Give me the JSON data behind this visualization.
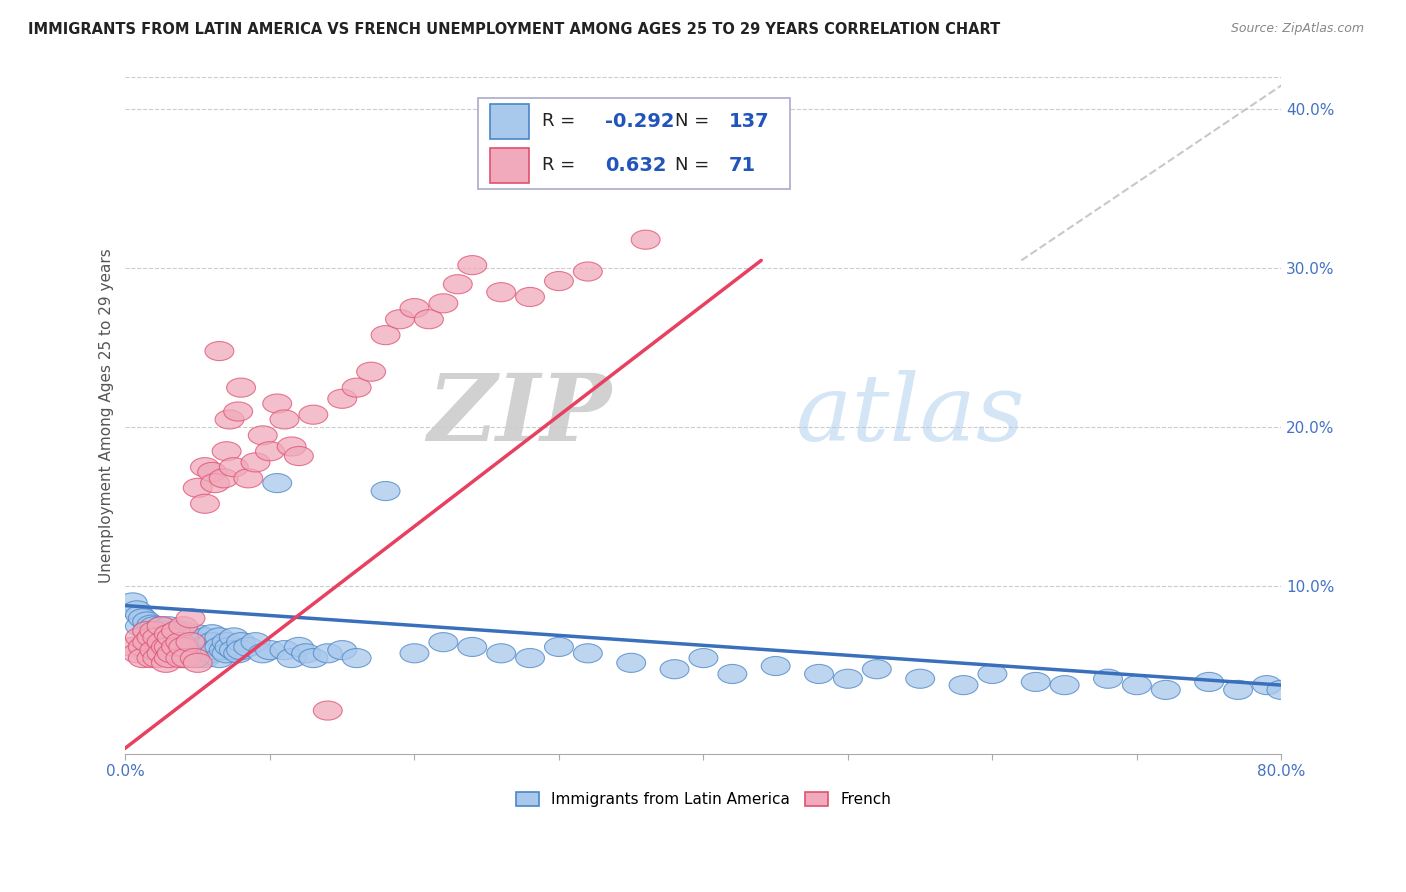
{
  "title": "IMMIGRANTS FROM LATIN AMERICA VS FRENCH UNEMPLOYMENT AMONG AGES 25 TO 29 YEARS CORRELATION CHART",
  "source": "Source: ZipAtlas.com",
  "ylabel": "Unemployment Among Ages 25 to 29 years",
  "xlim": [
    0.0,
    0.8
  ],
  "ylim": [
    -0.005,
    0.42
  ],
  "xticks": [
    0.0,
    0.1,
    0.2,
    0.3,
    0.4,
    0.5,
    0.6,
    0.7,
    0.8
  ],
  "yticks_right": [
    0.1,
    0.2,
    0.3,
    0.4
  ],
  "yticklabels_right": [
    "10.0%",
    "20.0%",
    "30.0%",
    "40.0%"
  ],
  "blue_color": "#A8C8EC",
  "blue_edge_color": "#4A86C8",
  "pink_color": "#F0AABB",
  "pink_edge_color": "#E05070",
  "blue_line_color": "#3A6FBB",
  "pink_line_color": "#E84060",
  "legend_blue_label": "Immigrants from Latin America",
  "legend_pink_label": "French",
  "R_blue": -0.292,
  "N_blue": 137,
  "R_pink": 0.632,
  "N_pink": 71,
  "blue_trend_x": [
    0.0,
    0.8
  ],
  "blue_trend_y": [
    0.088,
    0.038
  ],
  "pink_trend_x": [
    -0.005,
    0.44
  ],
  "pink_trend_y": [
    -0.005,
    0.305
  ],
  "dash_line_x": [
    0.62,
    0.8
  ],
  "dash_line_y": [
    0.305,
    0.415
  ],
  "watermark_zip": "ZIP",
  "watermark_atlas": "atlas",
  "blue_scatter_x": [
    0.005,
    0.008,
    0.01,
    0.01,
    0.012,
    0.015,
    0.015,
    0.018,
    0.018,
    0.02,
    0.02,
    0.02,
    0.022,
    0.022,
    0.025,
    0.025,
    0.025,
    0.025,
    0.028,
    0.028,
    0.03,
    0.03,
    0.03,
    0.03,
    0.032,
    0.032,
    0.035,
    0.035,
    0.035,
    0.035,
    0.038,
    0.038,
    0.038,
    0.04,
    0.04,
    0.04,
    0.04,
    0.042,
    0.042,
    0.045,
    0.045,
    0.045,
    0.048,
    0.048,
    0.05,
    0.05,
    0.05,
    0.05,
    0.052,
    0.052,
    0.055,
    0.055,
    0.055,
    0.058,
    0.058,
    0.06,
    0.06,
    0.06,
    0.062,
    0.065,
    0.065,
    0.065,
    0.068,
    0.07,
    0.07,
    0.072,
    0.075,
    0.075,
    0.078,
    0.08,
    0.08,
    0.085,
    0.09,
    0.095,
    0.1,
    0.105,
    0.11,
    0.115,
    0.12,
    0.125,
    0.13,
    0.14,
    0.15,
    0.16,
    0.18,
    0.2,
    0.22,
    0.24,
    0.26,
    0.28,
    0.3,
    0.32,
    0.35,
    0.38,
    0.4,
    0.42,
    0.45,
    0.48,
    0.5,
    0.52,
    0.55,
    0.58,
    0.6,
    0.63,
    0.65,
    0.68,
    0.7,
    0.72,
    0.75,
    0.77,
    0.79,
    0.8
  ],
  "blue_scatter_y": [
    0.09,
    0.085,
    0.082,
    0.075,
    0.08,
    0.078,
    0.072,
    0.076,
    0.068,
    0.075,
    0.07,
    0.065,
    0.072,
    0.068,
    0.075,
    0.07,
    0.065,
    0.06,
    0.072,
    0.065,
    0.075,
    0.07,
    0.065,
    0.06,
    0.068,
    0.062,
    0.072,
    0.068,
    0.062,
    0.058,
    0.068,
    0.062,
    0.058,
    0.072,
    0.066,
    0.06,
    0.055,
    0.065,
    0.058,
    0.068,
    0.062,
    0.055,
    0.065,
    0.058,
    0.07,
    0.065,
    0.06,
    0.055,
    0.062,
    0.056,
    0.068,
    0.062,
    0.055,
    0.065,
    0.058,
    0.07,
    0.065,
    0.058,
    0.06,
    0.068,
    0.062,
    0.055,
    0.06,
    0.065,
    0.058,
    0.062,
    0.068,
    0.06,
    0.058,
    0.065,
    0.06,
    0.062,
    0.065,
    0.058,
    0.06,
    0.165,
    0.06,
    0.055,
    0.062,
    0.058,
    0.055,
    0.058,
    0.06,
    0.055,
    0.16,
    0.058,
    0.065,
    0.062,
    0.058,
    0.055,
    0.062,
    0.058,
    0.052,
    0.048,
    0.055,
    0.045,
    0.05,
    0.045,
    0.042,
    0.048,
    0.042,
    0.038,
    0.045,
    0.04,
    0.038,
    0.042,
    0.038,
    0.035,
    0.04,
    0.035,
    0.038,
    0.035
  ],
  "pink_scatter_x": [
    0.005,
    0.008,
    0.01,
    0.012,
    0.012,
    0.015,
    0.015,
    0.018,
    0.018,
    0.02,
    0.02,
    0.022,
    0.022,
    0.025,
    0.025,
    0.025,
    0.028,
    0.028,
    0.03,
    0.03,
    0.03,
    0.032,
    0.032,
    0.035,
    0.035,
    0.038,
    0.038,
    0.04,
    0.04,
    0.042,
    0.045,
    0.045,
    0.048,
    0.05,
    0.05,
    0.055,
    0.055,
    0.06,
    0.062,
    0.065,
    0.068,
    0.07,
    0.072,
    0.075,
    0.078,
    0.08,
    0.085,
    0.09,
    0.095,
    0.1,
    0.105,
    0.11,
    0.115,
    0.12,
    0.13,
    0.14,
    0.15,
    0.16,
    0.17,
    0.18,
    0.19,
    0.2,
    0.21,
    0.22,
    0.23,
    0.24,
    0.26,
    0.28,
    0.3,
    0.32,
    0.36
  ],
  "pink_scatter_y": [
    0.062,
    0.058,
    0.068,
    0.062,
    0.055,
    0.072,
    0.065,
    0.068,
    0.055,
    0.072,
    0.06,
    0.068,
    0.055,
    0.075,
    0.065,
    0.058,
    0.062,
    0.052,
    0.07,
    0.062,
    0.055,
    0.068,
    0.058,
    0.072,
    0.062,
    0.065,
    0.055,
    0.075,
    0.062,
    0.055,
    0.08,
    0.065,
    0.055,
    0.162,
    0.052,
    0.175,
    0.152,
    0.172,
    0.165,
    0.248,
    0.168,
    0.185,
    0.205,
    0.175,
    0.21,
    0.225,
    0.168,
    0.178,
    0.195,
    0.185,
    0.215,
    0.205,
    0.188,
    0.182,
    0.208,
    0.022,
    0.218,
    0.225,
    0.235,
    0.258,
    0.268,
    0.275,
    0.268,
    0.278,
    0.29,
    0.302,
    0.285,
    0.282,
    0.292,
    0.298,
    0.318
  ]
}
